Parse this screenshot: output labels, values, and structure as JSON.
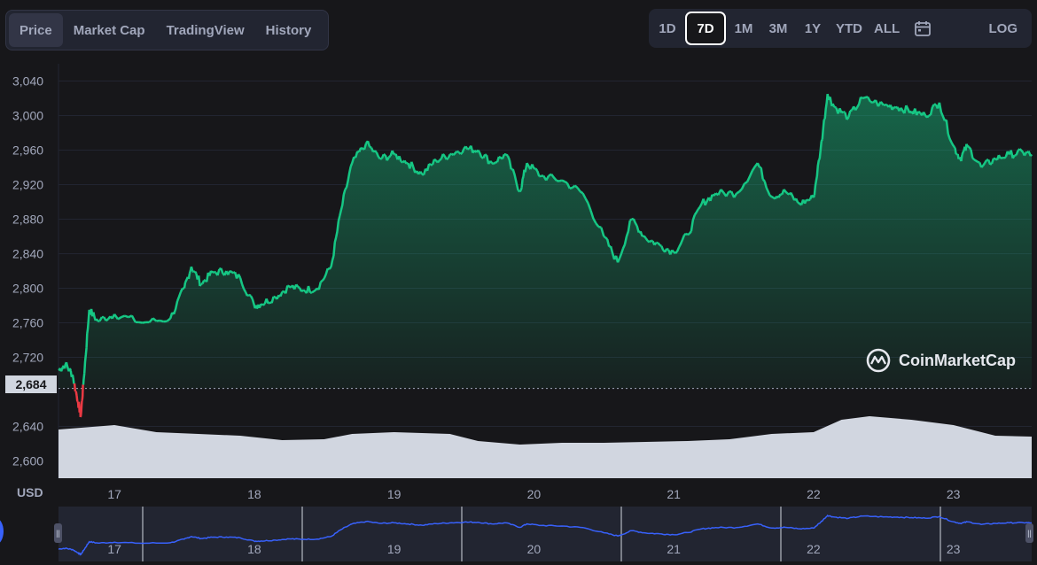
{
  "tabs": [
    {
      "label": "Price",
      "active": true
    },
    {
      "label": "Market Cap",
      "active": false
    },
    {
      "label": "TradingView",
      "active": false
    },
    {
      "label": "History",
      "active": false
    }
  ],
  "ranges": [
    {
      "label": "1D",
      "active": false
    },
    {
      "label": "7D",
      "active": true
    },
    {
      "label": "1M",
      "active": false
    },
    {
      "label": "3M",
      "active": false
    },
    {
      "label": "1Y",
      "active": false
    },
    {
      "label": "YTD",
      "active": false
    },
    {
      "label": "ALL",
      "active": false
    }
  ],
  "calendar_icon": "calendar-icon",
  "log_label": "LOG",
  "currency_label": "USD",
  "watermark_text": "CoinMarketCap",
  "current_price_tag": "2,684",
  "colors": {
    "up_line": "#16c784",
    "down_line": "#ea3943",
    "volume_fill": "#d1d6e0",
    "navigator_line": "#3861fb"
  },
  "chart_data": {
    "type": "area",
    "currency": "USD",
    "ylim": [
      2580,
      3060
    ],
    "yticks": [
      "3,040",
      "3,000",
      "2,960",
      "2,920",
      "2,880",
      "2,840",
      "2,800",
      "2,760",
      "2,720",
      "2,640",
      "2,600"
    ],
    "yticks_values": [
      3040,
      3000,
      2960,
      2920,
      2880,
      2840,
      2800,
      2760,
      2720,
      2640,
      2600
    ],
    "xlim": [
      16.6,
      23.56
    ],
    "xticks": [
      "17",
      "18",
      "19",
      "20",
      "21",
      "22",
      "23"
    ],
    "baseline_price": 2684,
    "price_series": {
      "x": [
        16.6,
        16.65,
        16.7,
        16.74,
        16.76,
        16.78,
        16.82,
        16.88,
        17.0,
        17.2,
        17.4,
        17.5,
        17.55,
        17.62,
        17.7,
        17.8,
        17.9,
        18.0,
        18.05,
        18.15,
        18.25,
        18.35,
        18.45,
        18.55,
        18.62,
        18.7,
        18.8,
        18.9,
        19.0,
        19.1,
        19.2,
        19.3,
        19.4,
        19.5,
        19.6,
        19.7,
        19.8,
        19.9,
        19.95,
        20.05,
        20.2,
        20.35,
        20.5,
        20.6,
        20.7,
        20.8,
        20.9,
        21.0,
        21.1,
        21.2,
        21.3,
        21.45,
        21.6,
        21.7,
        21.8,
        21.9,
        22.0,
        22.05,
        22.1,
        22.15,
        22.25,
        22.35,
        22.5,
        22.6,
        22.7,
        22.8,
        22.9,
        23.0,
        23.05,
        23.1,
        23.2,
        23.3,
        23.4,
        23.5,
        23.56
      ],
      "y": [
        2705,
        2712,
        2700,
        2668,
        2652,
        2694,
        2775,
        2762,
        2770,
        2760,
        2765,
        2800,
        2825,
        2805,
        2818,
        2820,
        2812,
        2780,
        2782,
        2790,
        2802,
        2798,
        2800,
        2825,
        2890,
        2945,
        2968,
        2950,
        2955,
        2945,
        2932,
        2948,
        2955,
        2962,
        2960,
        2945,
        2955,
        2912,
        2945,
        2930,
        2925,
        2910,
        2860,
        2830,
        2880,
        2858,
        2850,
        2842,
        2862,
        2898,
        2910,
        2910,
        2945,
        2906,
        2912,
        2898,
        2905,
        2960,
        3025,
        3010,
        2998,
        3020,
        3012,
        3010,
        3005,
        3000,
        3015,
        2965,
        2950,
        2965,
        2940,
        2950,
        2955,
        2957,
        2955
      ]
    },
    "volume_profile": {
      "x": [
        16.6,
        17.0,
        17.3,
        17.6,
        17.9,
        18.2,
        18.5,
        18.7,
        19.0,
        19.4,
        19.6,
        19.9,
        20.2,
        20.5,
        20.8,
        21.1,
        21.4,
        21.7,
        22.0,
        22.2,
        22.4,
        22.7,
        23.0,
        23.3,
        23.56
      ],
      "relative_height": [
        0.55,
        0.6,
        0.52,
        0.5,
        0.48,
        0.43,
        0.44,
        0.5,
        0.52,
        0.5,
        0.42,
        0.38,
        0.4,
        0.4,
        0.41,
        0.42,
        0.44,
        0.5,
        0.52,
        0.66,
        0.7,
        0.66,
        0.6,
        0.48,
        0.47
      ]
    }
  }
}
